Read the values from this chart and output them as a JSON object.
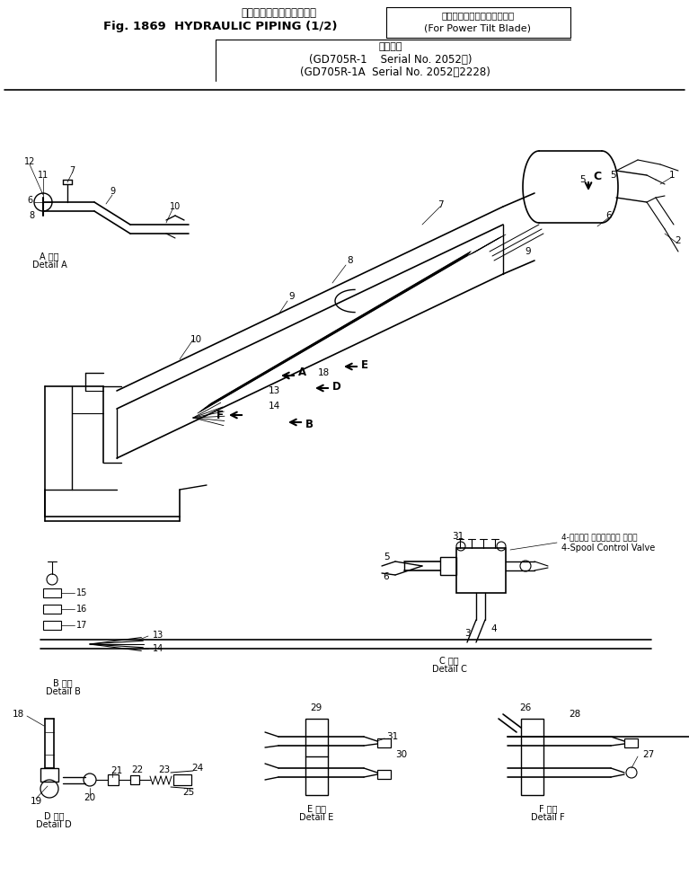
{
  "bg_color": "#ffffff",
  "line_color": "#000000",
  "fig_width": 7.67,
  "fig_height": 9.84,
  "dpi": 100,
  "title": {
    "jp_top": "ハイドロリックパイピング",
    "main_left": "Fig. 1869  HYDRAULIC PIPING (1/2)",
    "right_jp": "（パワーチルトブレード用）",
    "right_en": "(For Power Tilt Blade)",
    "serial_jp": "適用号機",
    "serial1": "(GD705R-1    Serial No. 2052～)",
    "serial2": "(GD705R-1A  Serial No. 2052～2228)"
  }
}
